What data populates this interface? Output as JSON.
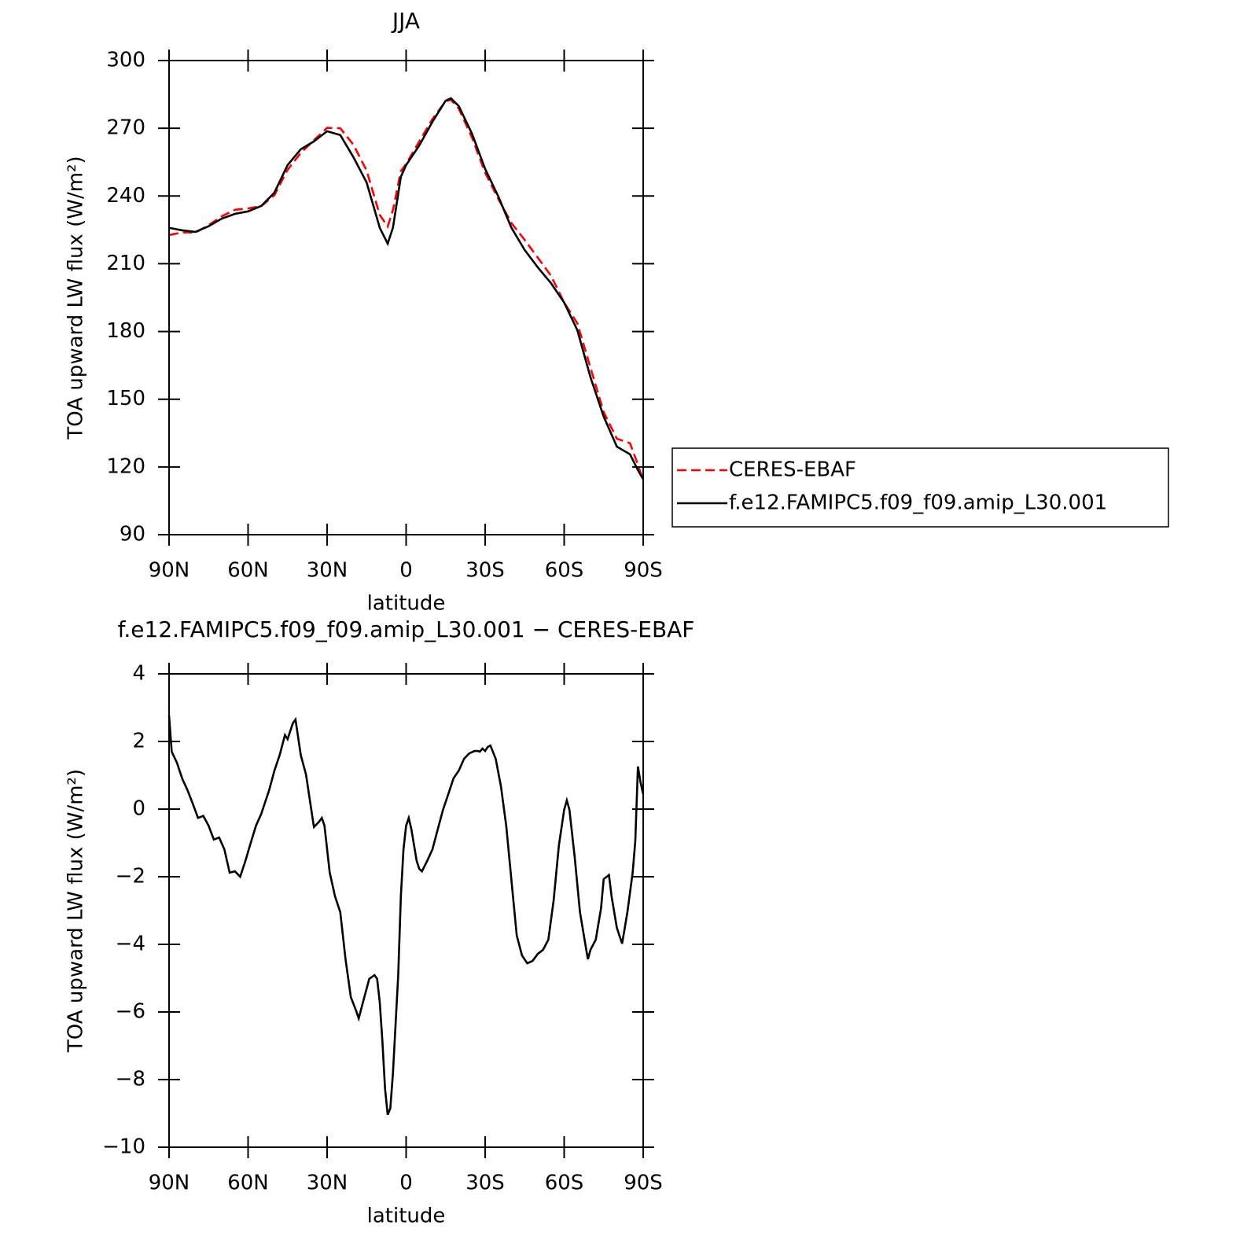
{
  "chart_data": [
    {
      "type": "line",
      "title": "JJA",
      "xlabel": "latitude",
      "ylabel": "TOA upward LW flux (W/m²)",
      "x": [
        90,
        85,
        80,
        75,
        70,
        65,
        60,
        55,
        50,
        45,
        40,
        35,
        30,
        25,
        20,
        15,
        10,
        7,
        5,
        2,
        0,
        -5,
        -10,
        -15,
        -17,
        -20,
        -25,
        -30,
        -35,
        -40,
        -45,
        -50,
        -55,
        -60,
        -65,
        -70,
        -75,
        -80,
        -85,
        -88,
        -90
      ],
      "series": [
        {
          "name": "CERES-EBAF",
          "color": "#ff0000",
          "line_style": "dashed",
          "values": [
            222.7,
            223.9,
            223.8,
            227.1,
            231,
            233.9,
            234.5,
            235.5,
            240.4,
            251.6,
            259.1,
            264.7,
            270.2,
            270,
            262.7,
            251.3,
            231.6,
            226.5,
            233.8,
            251,
            254.2,
            264.2,
            274.1,
            282,
            282.6,
            278.7,
            265.9,
            250.3,
            238.7,
            228,
            220.6,
            212.7,
            204.7,
            192.8,
            183.6,
            163.9,
            144.3,
            132.5,
            130.5,
            121,
            114
          ]
        },
        {
          "name": "f.e12.FAMIPC5.f09_f09.amip_L30.001",
          "color": "#000000",
          "line_style": "solid",
          "values": [
            225.9,
            224.8,
            224.1,
            226.6,
            230,
            232.1,
            233.2,
            235.6,
            241.5,
            253.7,
            260.7,
            264.2,
            268.7,
            267,
            257.2,
            246,
            225.9,
            218.9,
            226,
            248.5,
            253.7,
            262.4,
            272.9,
            282.2,
            283.3,
            279.8,
            267.6,
            252,
            239.8,
            225.9,
            216.1,
            208.4,
            201.4,
            192.8,
            180.6,
            159.7,
            142.3,
            129,
            125.6,
            118.6,
            114.5
          ]
        }
      ],
      "xlim": [
        90,
        -90
      ],
      "xticks": [
        {
          "value": 90,
          "label": "90N"
        },
        {
          "value": 60,
          "label": "60N"
        },
        {
          "value": 30,
          "label": "30N"
        },
        0,
        {
          "value": -30,
          "label": "30S"
        },
        {
          "value": -60,
          "label": "60S"
        },
        {
          "value": -90,
          "label": "90S"
        }
      ],
      "ylim": [
        90,
        300
      ],
      "yticks": [
        90,
        120,
        150,
        180,
        210,
        240,
        270,
        300
      ],
      "legend": "right"
    },
    {
      "type": "line",
      "title": "f.e12.FAMIPC5.f09_f09.amip_L30.001 − CERES-EBAF",
      "xlabel": "latitude",
      "ylabel": "TOA upward LW flux (W/m²)",
      "x": [
        90,
        89,
        87,
        85,
        83,
        81,
        79,
        77,
        75,
        73,
        71,
        69,
        67,
        65,
        63,
        61,
        59,
        57,
        55,
        52,
        50,
        48,
        46,
        45,
        43,
        42,
        40,
        38,
        36,
        35,
        33,
        32,
        31,
        29,
        27,
        25,
        23,
        21,
        19,
        18,
        16,
        14,
        12,
        11,
        10,
        9,
        8,
        7,
        6,
        5,
        3,
        2,
        1,
        0,
        -1,
        -2,
        -4,
        -5,
        -6,
        -8,
        -10,
        -12,
        -14,
        -16,
        -18,
        -20,
        -22,
        -24,
        -26,
        -27,
        -28,
        -29,
        -30,
        -31,
        -32,
        -34,
        -36,
        -38,
        -40,
        -42,
        -44,
        -46,
        -48,
        -50,
        -52,
        -54,
        -56,
        -58,
        -60,
        -61,
        -62,
        -64,
        -66,
        -68,
        -69,
        -70,
        -72,
        -74,
        -75,
        -77,
        -78,
        -80,
        -82,
        -84,
        -86,
        -87,
        -88,
        -89,
        -90
      ],
      "series": [
        {
          "color": "#000000",
          "line_style": "solid",
          "values": [
            2.77,
            1.7,
            1.37,
            0.9,
            0.56,
            0.16,
            -0.26,
            -0.2,
            -0.49,
            -0.9,
            -0.84,
            -1.19,
            -1.88,
            -1.84,
            -2.0,
            -1.53,
            -1.0,
            -0.49,
            -0.14,
            0.56,
            1.14,
            1.6,
            2.19,
            2.07,
            2.54,
            2.65,
            1.6,
            1.02,
            -0.02,
            -0.53,
            -0.37,
            -0.26,
            -0.49,
            -1.88,
            -2.58,
            -3.05,
            -4.44,
            -5.56,
            -5.96,
            -6.19,
            -5.6,
            -5.02,
            -4.91,
            -5.02,
            -5.72,
            -6.88,
            -8.27,
            -9.04,
            -8.85,
            -7.81,
            -4.91,
            -2.58,
            -1.19,
            -0.49,
            -0.26,
            -0.6,
            -1.53,
            -1.77,
            -1.84,
            -1.53,
            -1.19,
            -0.6,
            -0.02,
            0.44,
            0.91,
            1.14,
            1.49,
            1.65,
            1.72,
            1.72,
            1.7,
            1.79,
            1.72,
            1.84,
            1.88,
            1.49,
            0.67,
            -0.49,
            -2.12,
            -3.74,
            -4.33,
            -4.56,
            -4.49,
            -4.28,
            -4.16,
            -3.86,
            -2.7,
            -1.07,
            -0.02,
            0.26,
            -0.02,
            -1.42,
            -3.05,
            -3.98,
            -4.44,
            -4.16,
            -3.86,
            -2.93,
            -2.07,
            -1.95,
            -2.58,
            -3.51,
            -3.98,
            -3.05,
            -1.88,
            -0.95,
            1.26,
            0.79,
            0.44
          ]
        }
      ],
      "xlim": [
        90,
        -90
      ],
      "xticks": [
        {
          "value": 90,
          "label": "90N"
        },
        {
          "value": 60,
          "label": "60N"
        },
        {
          "value": 30,
          "label": "30N"
        },
        0,
        {
          "value": -30,
          "label": "30S"
        },
        {
          "value": -60,
          "label": "60S"
        },
        {
          "value": -90,
          "label": "90S"
        }
      ],
      "ylim": [
        -10,
        4
      ],
      "yticks": [
        {
          "value": -10,
          "label": "−10"
        },
        {
          "value": -8,
          "label": "−8"
        },
        {
          "value": -6,
          "label": "−6"
        },
        {
          "value": -4,
          "label": "−4"
        },
        {
          "value": -2,
          "label": "−2"
        },
        0,
        2,
        4
      ]
    }
  ]
}
